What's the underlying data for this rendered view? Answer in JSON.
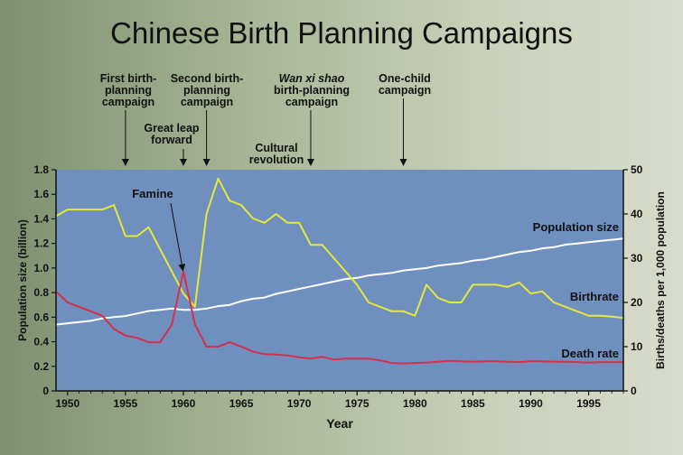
{
  "page": {
    "title": "Chinese Birth Planning Campaigns"
  },
  "chart_data": {
    "type": "line",
    "title": "Chinese Birth Planning Campaigns",
    "xlabel": "Year",
    "ylabel_left": "Population size (billion)",
    "ylabel_right": "Births/deaths per 1,000 population",
    "xlim": [
      1949,
      1998
    ],
    "ylim_left": [
      0,
      1.8
    ],
    "ylim_right": [
      0,
      50
    ],
    "grid": false,
    "x_ticks": [
      1950,
      1955,
      1960,
      1965,
      1970,
      1975,
      1980,
      1985,
      1990,
      1995
    ],
    "y_left_ticks": [
      "0",
      "0.2",
      "0.4",
      "0.6",
      "0.8",
      "1.0",
      "1.2",
      "1.4",
      "1.6",
      "1.8"
    ],
    "y_right_ticks": [
      "0",
      "10",
      "20",
      "30",
      "40",
      "50"
    ],
    "colors": {
      "plot_background": "#6f8fbf",
      "population": "#ffffff",
      "birthrate": "#e5e83a",
      "death_rate": "#d62f4a"
    },
    "series": [
      {
        "name": "Population size",
        "axis": "left",
        "color": "#ffffff",
        "x": [
          1949,
          1950,
          1951,
          1952,
          1953,
          1954,
          1955,
          1956,
          1957,
          1958,
          1959,
          1960,
          1961,
          1962,
          1963,
          1964,
          1965,
          1966,
          1967,
          1968,
          1969,
          1970,
          1971,
          1972,
          1973,
          1974,
          1975,
          1976,
          1977,
          1978,
          1979,
          1980,
          1981,
          1982,
          1983,
          1984,
          1985,
          1986,
          1987,
          1988,
          1989,
          1990,
          1991,
          1992,
          1993,
          1994,
          1995,
          1996,
          1997,
          1998
        ],
        "y": [
          0.54,
          0.55,
          0.56,
          0.57,
          0.59,
          0.6,
          0.61,
          0.63,
          0.65,
          0.66,
          0.67,
          0.66,
          0.66,
          0.67,
          0.69,
          0.7,
          0.73,
          0.75,
          0.76,
          0.79,
          0.81,
          0.83,
          0.85,
          0.87,
          0.89,
          0.91,
          0.92,
          0.94,
          0.95,
          0.96,
          0.98,
          0.99,
          1.0,
          1.02,
          1.03,
          1.04,
          1.06,
          1.07,
          1.09,
          1.11,
          1.13,
          1.14,
          1.16,
          1.17,
          1.19,
          1.2,
          1.21,
          1.22,
          1.23,
          1.24
        ]
      },
      {
        "name": "Birthrate",
        "axis": "right",
        "color": "#e5e83a",
        "x": [
          1949,
          1950,
          1951,
          1952,
          1953,
          1954,
          1955,
          1956,
          1957,
          1958,
          1959,
          1960,
          1961,
          1962,
          1963,
          1964,
          1965,
          1966,
          1967,
          1968,
          1969,
          1970,
          1971,
          1972,
          1973,
          1974,
          1975,
          1976,
          1977,
          1978,
          1979,
          1980,
          1981,
          1982,
          1983,
          1984,
          1985,
          1986,
          1987,
          1988,
          1989,
          1990,
          1991,
          1992,
          1993,
          1994,
          1995,
          1996,
          1997,
          1998
        ],
        "y": [
          39.5,
          41,
          41,
          41,
          41,
          42,
          35,
          35,
          37,
          32,
          27,
          22,
          19,
          40,
          48,
          43,
          42,
          39,
          38,
          40,
          38,
          38,
          33,
          33,
          30,
          27,
          24,
          20,
          19,
          18,
          18,
          17,
          24,
          21,
          20,
          20,
          24,
          24,
          24,
          23.5,
          24.5,
          22,
          22.5,
          20,
          19,
          18,
          17,
          17,
          16.8,
          16.5
        ]
      },
      {
        "name": "Death rate",
        "axis": "right",
        "color": "#d62f4a",
        "x": [
          1949,
          1950,
          1951,
          1952,
          1953,
          1954,
          1955,
          1956,
          1957,
          1958,
          1959,
          1960,
          1961,
          1962,
          1963,
          1964,
          1965,
          1966,
          1967,
          1968,
          1969,
          1970,
          1971,
          1972,
          1973,
          1974,
          1975,
          1976,
          1977,
          1978,
          1979,
          1980,
          1981,
          1982,
          1983,
          1984,
          1985,
          1986,
          1987,
          1988,
          1989,
          1990,
          1991,
          1992,
          1993,
          1994,
          1995,
          1996,
          1997,
          1998
        ],
        "y": [
          22.5,
          20,
          19,
          18,
          17,
          14,
          12.5,
          12,
          11,
          11,
          15,
          27,
          15,
          10,
          10,
          11,
          10,
          8.9,
          8.3,
          8.2,
          8.0,
          7.6,
          7.3,
          7.7,
          7.1,
          7.3,
          7.3,
          7.3,
          6.9,
          6.3,
          6.2,
          6.3,
          6.4,
          6.6,
          6.8,
          6.7,
          6.6,
          6.7,
          6.7,
          6.6,
          6.5,
          6.7,
          6.7,
          6.6,
          6.6,
          6.5,
          6.4,
          6.5,
          6.5,
          6.5
        ]
      }
    ],
    "series_labels": [
      "Population size",
      "Birthrate",
      "Death rate"
    ],
    "campaign_annotations": [
      {
        "label": "First birth-\nplanning\ncampaign",
        "year": 1955
      },
      {
        "label": "Second birth-\nplanning\ncampaign",
        "year": 1962
      },
      {
        "label": "Wan xi shao\nbirth-planning\ncampaign",
        "year": 1971,
        "italic_first_line": true
      },
      {
        "label": "One-child\ncampaign",
        "year": 1979
      }
    ],
    "event_annotations": [
      {
        "label": "Great leap\nforward",
        "year": 1960
      },
      {
        "label": "Cultural\nrevolution",
        "year": 1970
      },
      {
        "label": "Famine",
        "year": 1960,
        "points_to": "death_rate_peak"
      }
    ]
  }
}
